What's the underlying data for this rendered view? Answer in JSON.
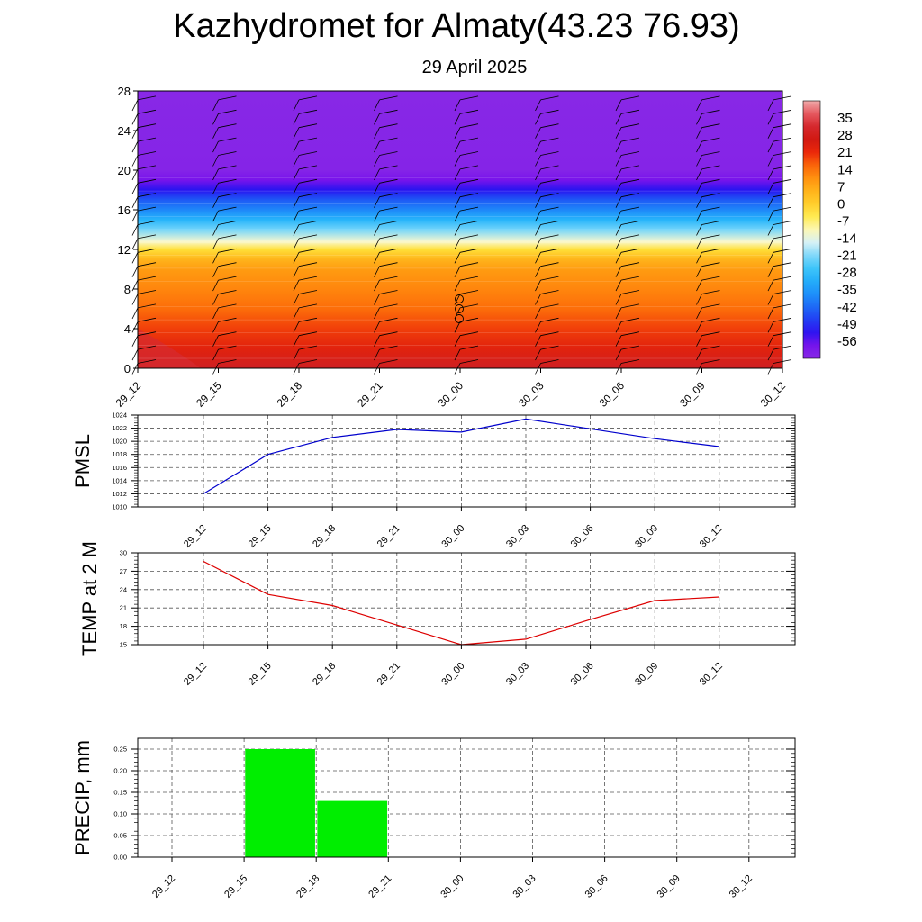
{
  "title": "Kazhydromet for Almaty(43.23 76.93)",
  "subtitle": "29 April 2025",
  "time_labels": [
    "29_12",
    "29_15",
    "29_18",
    "29_21",
    "30_00",
    "30_03",
    "30_06",
    "30_09",
    "30_12"
  ],
  "colors": {
    "pmsl_line": "#0000cc",
    "temp_line": "#dd0000",
    "precip_bar": "#00ee00",
    "grid": "#555555"
  },
  "chart_data": [
    {
      "type": "heatmap",
      "title": "",
      "xlabel": "",
      "ylabel": "",
      "x": [
        "29_12",
        "29_15",
        "29_18",
        "29_21",
        "30_00",
        "30_03",
        "30_06",
        "30_09",
        "30_12"
      ],
      "ylim": [
        0,
        28
      ],
      "y_ticks": [
        0,
        4,
        8,
        12,
        16,
        20,
        24,
        28
      ],
      "colorbar_labels": [
        "35",
        "28",
        "21",
        "14",
        "7",
        "0",
        "-7",
        "-14",
        "-21",
        "-28",
        "-35",
        "-42",
        "-49",
        "-56"
      ],
      "colorbar_range": [
        -63,
        42
      ],
      "temperature_profile": [
        {
          "h": 0,
          "t": 30
        },
        {
          "h": 2,
          "t": 23
        },
        {
          "h": 4,
          "t": 19
        },
        {
          "h": 6,
          "t": 15
        },
        {
          "h": 8,
          "t": 12
        },
        {
          "h": 10,
          "t": 9
        },
        {
          "h": 11,
          "t": 5
        },
        {
          "h": 12,
          "t": -3
        },
        {
          "h": 12.8,
          "t": -12
        },
        {
          "h": 14,
          "t": -22
        },
        {
          "h": 15,
          "t": -30
        },
        {
          "h": 16,
          "t": -38
        },
        {
          "h": 17,
          "t": -44
        },
        {
          "h": 18,
          "t": -52
        },
        {
          "h": 19,
          "t": -58
        },
        {
          "h": 20,
          "t": -62
        },
        {
          "h": 28,
          "t": -63
        }
      ],
      "calm_marker_heights": [
        5,
        6,
        7
      ]
    },
    {
      "type": "line",
      "ylabel": "PMSL",
      "x": [
        "29_12",
        "29_15",
        "29_18",
        "29_21",
        "30_00",
        "30_03",
        "30_06",
        "30_09",
        "30_12"
      ],
      "series": [
        {
          "values": [
            1012,
            1018,
            1020.6,
            1021.8,
            1021.4,
            1023.4,
            1021.9,
            1020.4,
            1019.2
          ]
        }
      ],
      "ylim": [
        1010,
        1024
      ],
      "y_ticks": [
        1010,
        1012,
        1014,
        1016,
        1018,
        1020,
        1022,
        1024
      ],
      "grid": true
    },
    {
      "type": "line",
      "ylabel": "TEMP at 2 M",
      "x": [
        "29_12",
        "29_15",
        "29_18",
        "29_21",
        "30_00",
        "30_03",
        "30_06",
        "30_09",
        "30_12"
      ],
      "series": [
        {
          "values": [
            28.6,
            23.2,
            21.4,
            18.2,
            15.0,
            15.9,
            19.1,
            22.2,
            22.8
          ]
        }
      ],
      "ylim": [
        15,
        30
      ],
      "y_ticks": [
        15,
        18,
        21,
        24,
        27,
        30
      ],
      "grid": true
    },
    {
      "type": "bar",
      "ylabel": "PRECIP, mm",
      "categories": [
        "29_12",
        "29_15",
        "29_18",
        "29_21",
        "30_00",
        "30_03",
        "30_06",
        "30_09",
        "30_12"
      ],
      "values": [
        0,
        0.25,
        0.13,
        0,
        0,
        0,
        0,
        0,
        0
      ],
      "ylim": [
        0,
        0.275
      ],
      "y_ticks": [
        "0.00",
        "0.05",
        "0.10",
        "0.15",
        "0.20",
        "0.25"
      ],
      "grid": true
    }
  ]
}
